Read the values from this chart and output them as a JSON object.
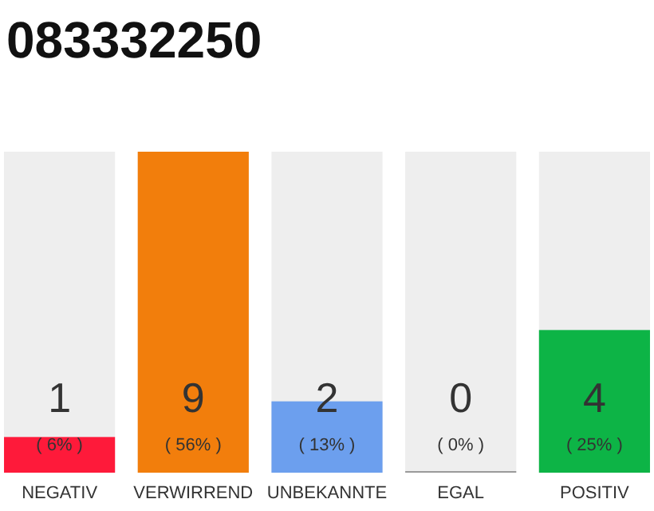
{
  "chart_data": {
    "type": "bar",
    "title": "083332250",
    "categories": [
      "NEGATIV",
      "VERWIRREND",
      "UNBEKANNTE",
      "EGAL",
      "POSITIV"
    ],
    "values": [
      1,
      9,
      2,
      0,
      4
    ],
    "colors": [
      "#fe1a3a",
      "#f27e0c",
      "#6c9fee",
      "#9a9a9a",
      "#0db446"
    ],
    "data_labels": true,
    "annotations": [
      "( 6% )",
      "( 56% )",
      "( 13% )",
      "( 0% )",
      "( 25% )"
    ]
  }
}
